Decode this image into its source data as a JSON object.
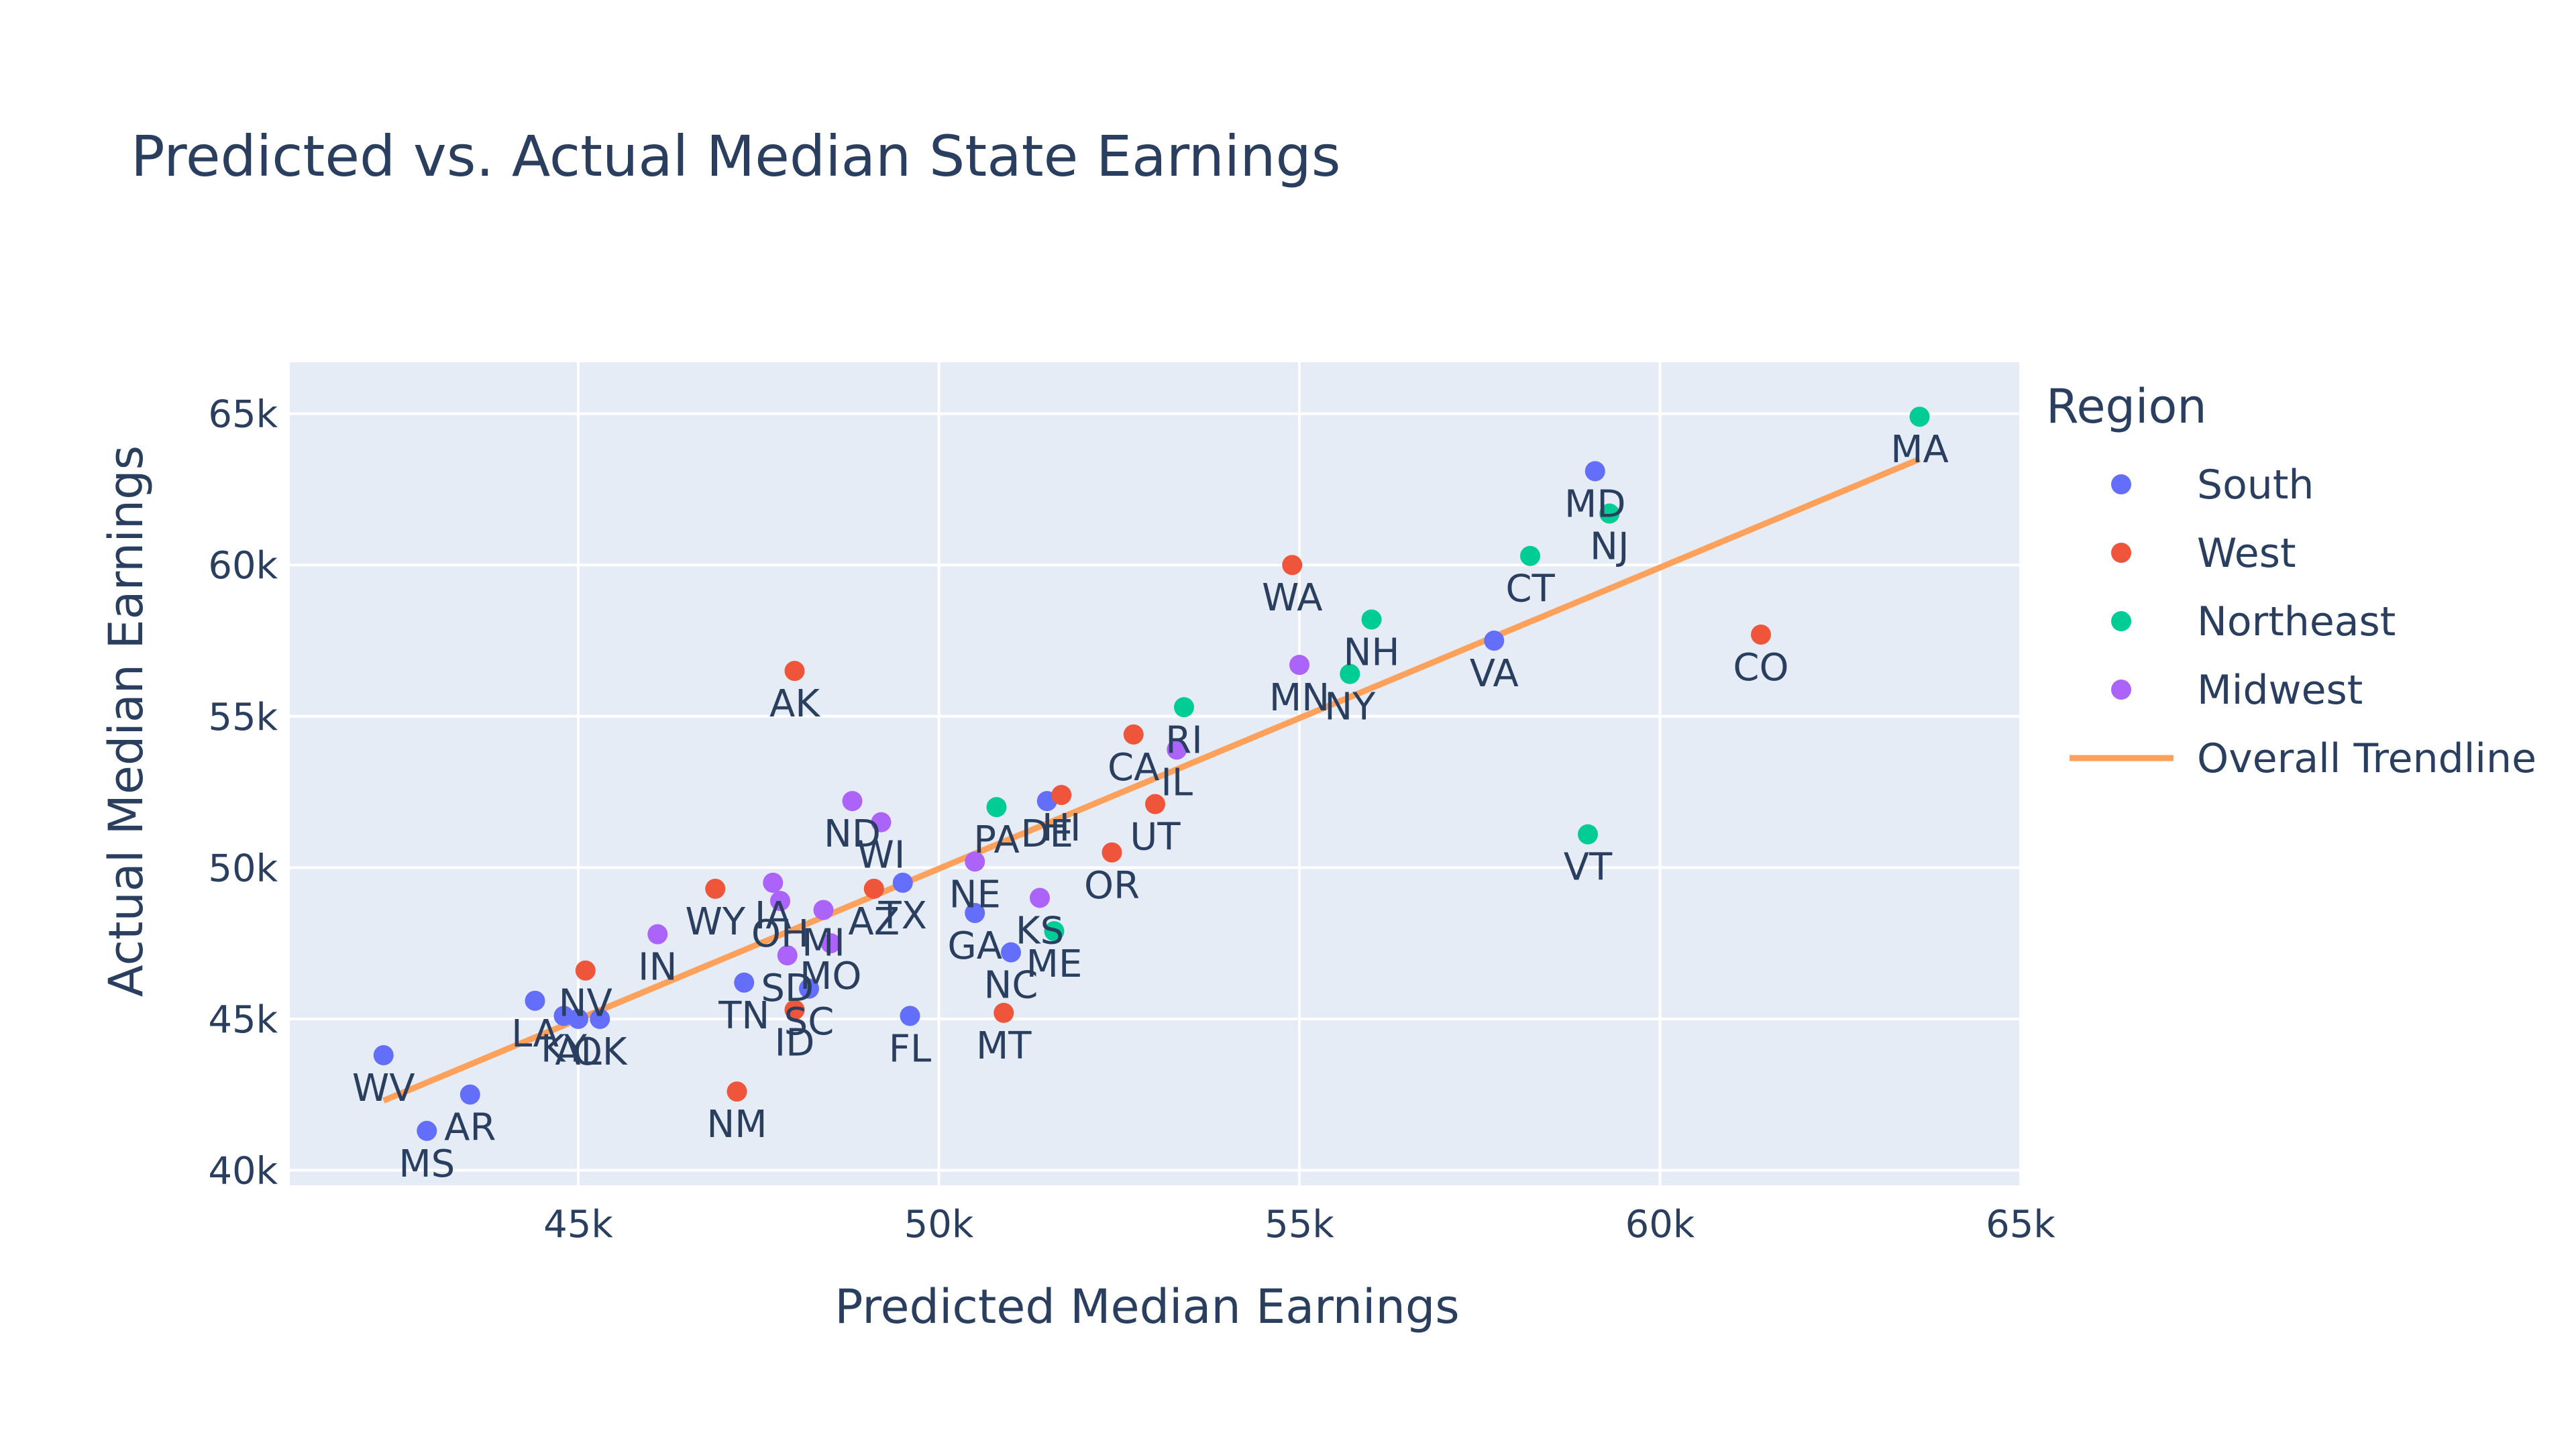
{
  "chart_data": {
    "type": "scatter",
    "title": "Predicted vs. Actual Median State Earnings",
    "xlabel": "Predicted Median Earnings",
    "ylabel": "Actual Median Earnings",
    "xlim": [
      41000,
      65000
    ],
    "ylim": [
      39500,
      66700
    ],
    "x_ticks": [
      45000,
      50000,
      55000,
      60000,
      65000
    ],
    "x_tick_labels": [
      "45k",
      "50k",
      "55k",
      "60k",
      "65k"
    ],
    "y_ticks": [
      40000,
      45000,
      50000,
      55000,
      60000,
      65000
    ],
    "y_tick_labels": [
      "40k",
      "45k",
      "50k",
      "55k",
      "60k",
      "65k"
    ],
    "grid": true,
    "legend": {
      "title": "Region",
      "placement": "right"
    },
    "series": [
      {
        "name": "South",
        "color": "#636efa",
        "points": [
          {
            "label": "MD",
            "x": 59100,
            "y": 63100
          },
          {
            "label": "VA",
            "x": 57700,
            "y": 57500
          },
          {
            "label": "DE",
            "x": 51500,
            "y": 52200
          },
          {
            "label": "TX",
            "x": 49500,
            "y": 49500
          },
          {
            "label": "GA",
            "x": 50500,
            "y": 48500
          },
          {
            "label": "NC",
            "x": 51000,
            "y": 47200
          },
          {
            "label": "FL",
            "x": 49600,
            "y": 45100
          },
          {
            "label": "TN",
            "x": 47300,
            "y": 46200
          },
          {
            "label": "SC",
            "x": 48200,
            "y": 46000
          },
          {
            "label": "LA",
            "x": 44400,
            "y": 45600
          },
          {
            "label": "KY",
            "x": 44800,
            "y": 45100
          },
          {
            "label": "AL",
            "x": 45000,
            "y": 45000
          },
          {
            "label": "OK",
            "x": 45300,
            "y": 45000
          },
          {
            "label": "WV",
            "x": 42300,
            "y": 43800
          },
          {
            "label": "AR",
            "x": 43500,
            "y": 42500
          },
          {
            "label": "MS",
            "x": 42900,
            "y": 41300
          }
        ]
      },
      {
        "name": "West",
        "color": "#ef553b",
        "points": [
          {
            "label": "WA",
            "x": 54900,
            "y": 60000
          },
          {
            "label": "CO",
            "x": 61400,
            "y": 57700
          },
          {
            "label": "AK",
            "x": 48000,
            "y": 56500
          },
          {
            "label": "CA",
            "x": 52700,
            "y": 54400
          },
          {
            "label": "HI",
            "x": 51700,
            "y": 52400
          },
          {
            "label": "UT",
            "x": 53000,
            "y": 52100
          },
          {
            "label": "OR",
            "x": 52400,
            "y": 50500
          },
          {
            "label": "AZ",
            "x": 49100,
            "y": 49300
          },
          {
            "label": "WY",
            "x": 46900,
            "y": 49300
          },
          {
            "label": "NV",
            "x": 45100,
            "y": 46600
          },
          {
            "label": "ID",
            "x": 48000,
            "y": 45300
          },
          {
            "label": "MT",
            "x": 50900,
            "y": 45200
          },
          {
            "label": "NM",
            "x": 47200,
            "y": 42600
          }
        ]
      },
      {
        "name": "Northeast",
        "color": "#00cc96",
        "points": [
          {
            "label": "MA",
            "x": 63600,
            "y": 64900
          },
          {
            "label": "NJ",
            "x": 59300,
            "y": 61700
          },
          {
            "label": "CT",
            "x": 58200,
            "y": 60300
          },
          {
            "label": "NH",
            "x": 56000,
            "y": 58200
          },
          {
            "label": "NY",
            "x": 55700,
            "y": 56400
          },
          {
            "label": "RI",
            "x": 53400,
            "y": 55300
          },
          {
            "label": "PA",
            "x": 50800,
            "y": 52000
          },
          {
            "label": "ME",
            "x": 51600,
            "y": 47900
          },
          {
            "label": "VT",
            "x": 59000,
            "y": 51100
          }
        ]
      },
      {
        "name": "Midwest",
        "color": "#ab63fa",
        "points": [
          {
            "label": "MN",
            "x": 55000,
            "y": 56700
          },
          {
            "label": "IL",
            "x": 53300,
            "y": 53900
          },
          {
            "label": "ND",
            "x": 48800,
            "y": 52200
          },
          {
            "label": "WI",
            "x": 49200,
            "y": 51500
          },
          {
            "label": "NE",
            "x": 50500,
            "y": 50200
          },
          {
            "label": "KS",
            "x": 51400,
            "y": 49000
          },
          {
            "label": "IA",
            "x": 47700,
            "y": 49500
          },
          {
            "label": "OH",
            "x": 47800,
            "y": 48900
          },
          {
            "label": "MI",
            "x": 48400,
            "y": 48600
          },
          {
            "label": "MO",
            "x": 48500,
            "y": 47500
          },
          {
            "label": "SD",
            "x": 47900,
            "y": 47100
          },
          {
            "label": "IN",
            "x": 46100,
            "y": 47800
          }
        ]
      },
      {
        "name": "Overall Trendline",
        "color": "#ffa15a",
        "type": "line",
        "x": [
          42300,
          63600
        ],
        "y": [
          42300,
          63500
        ]
      }
    ]
  }
}
